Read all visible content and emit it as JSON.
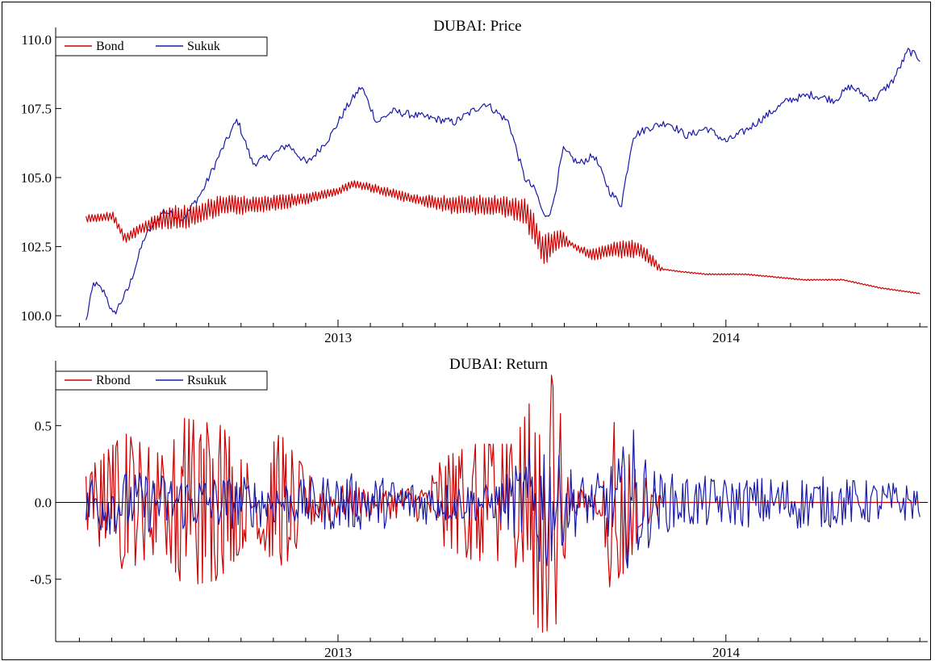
{
  "chart_data": [
    {
      "type": "line",
      "title": "DUBAI: Price",
      "xlabel": "",
      "ylabel": "",
      "x_tick_labels": [
        "2013",
        "2014"
      ],
      "y_ticks": [
        "100.0",
        "102.5",
        "105.0",
        "107.5",
        "110.0"
      ],
      "ylim": [
        99.8,
        110.2
      ],
      "xlim": [
        2012.33,
        2014.52
      ],
      "legend_position": "top-left",
      "grid": false,
      "series": [
        {
          "name": "Bond",
          "color": "#cc0000",
          "anchors": [
            [
              2012.35,
              103.5
            ],
            [
              2012.42,
              103.6
            ],
            [
              2012.45,
              102.8
            ],
            [
              2012.5,
              103.2
            ],
            [
              2012.55,
              103.5
            ],
            [
              2012.62,
              103.6
            ],
            [
              2012.7,
              104.0
            ],
            [
              2012.8,
              104.0
            ],
            [
              2012.9,
              104.2
            ],
            [
              2013.0,
              104.5
            ],
            [
              2013.04,
              104.8
            ],
            [
              2013.12,
              104.5
            ],
            [
              2013.2,
              104.2
            ],
            [
              2013.3,
              104.0
            ],
            [
              2013.4,
              104.0
            ],
            [
              2013.48,
              103.8
            ],
            [
              2013.53,
              102.4
            ],
            [
              2013.57,
              102.8
            ],
            [
              2013.6,
              102.6
            ],
            [
              2013.65,
              102.2
            ],
            [
              2013.72,
              102.4
            ],
            [
              2013.78,
              102.4
            ],
            [
              2013.83,
              101.7
            ],
            [
              2013.88,
              101.6
            ],
            [
              2013.95,
              101.5
            ],
            [
              2014.05,
              101.5
            ],
            [
              2014.2,
              101.3
            ],
            [
              2014.3,
              101.3
            ],
            [
              2014.4,
              101.0
            ],
            [
              2014.5,
              100.8
            ]
          ],
          "oscillation": [
            [
              2012.35,
              0.3
            ],
            [
              2012.5,
              0.4
            ],
            [
              2012.58,
              0.9
            ],
            [
              2012.75,
              0.7
            ],
            [
              2012.9,
              0.5
            ],
            [
              2013.0,
              0.3
            ],
            [
              2013.2,
              0.4
            ],
            [
              2013.3,
              0.7
            ],
            [
              2013.45,
              0.8
            ],
            [
              2013.5,
              1.2
            ],
            [
              2013.56,
              1.1
            ],
            [
              2013.6,
              0.2
            ],
            [
              2013.68,
              0.5
            ],
            [
              2013.75,
              0.7
            ],
            [
              2013.82,
              0.4
            ],
            [
              2013.84,
              0.05
            ],
            [
              2014.5,
              0.05
            ]
          ]
        },
        {
          "name": "Sukuk",
          "color": "#1a1aa8",
          "anchors": [
            [
              2012.35,
              99.8
            ],
            [
              2012.37,
              101.2
            ],
            [
              2012.4,
              100.8
            ],
            [
              2012.42,
              100.0
            ],
            [
              2012.46,
              101.0
            ],
            [
              2012.5,
              102.8
            ],
            [
              2012.55,
              103.8
            ],
            [
              2012.6,
              103.5
            ],
            [
              2012.65,
              104.5
            ],
            [
              2012.7,
              106.0
            ],
            [
              2012.74,
              107.1
            ],
            [
              2012.78,
              105.5
            ],
            [
              2012.83,
              105.8
            ],
            [
              2012.87,
              106.2
            ],
            [
              2012.92,
              105.5
            ],
            [
              2012.98,
              106.5
            ],
            [
              2013.02,
              107.5
            ],
            [
              2013.06,
              108.3
            ],
            [
              2013.1,
              107.0
            ],
            [
              2013.14,
              107.4
            ],
            [
              2013.22,
              107.2
            ],
            [
              2013.3,
              107.0
            ],
            [
              2013.38,
              107.7
            ],
            [
              2013.44,
              107.0
            ],
            [
              2013.48,
              105.0
            ],
            [
              2013.51,
              104.5
            ],
            [
              2013.53,
              103.6
            ],
            [
              2013.55,
              103.8
            ],
            [
              2013.58,
              106.0
            ],
            [
              2013.62,
              105.5
            ],
            [
              2013.66,
              105.8
            ],
            [
              2013.7,
              104.5
            ],
            [
              2013.73,
              104.0
            ],
            [
              2013.76,
              106.5
            ],
            [
              2013.8,
              106.8
            ],
            [
              2013.85,
              107.0
            ],
            [
              2013.9,
              106.5
            ],
            [
              2013.95,
              106.8
            ],
            [
              2014.0,
              106.3
            ],
            [
              2014.05,
              106.7
            ],
            [
              2014.1,
              107.2
            ],
            [
              2014.16,
              107.8
            ],
            [
              2014.22,
              108.0
            ],
            [
              2014.28,
              107.8
            ],
            [
              2014.32,
              108.3
            ],
            [
              2014.38,
              107.8
            ],
            [
              2014.43,
              108.5
            ],
            [
              2014.47,
              109.6
            ],
            [
              2014.5,
              109.3
            ]
          ],
          "noise": 0.28
        }
      ]
    },
    {
      "type": "line",
      "title": "DUBAI: Return",
      "xlabel": "",
      "ylabel": "",
      "x_tick_labels": [
        "2013",
        "2014"
      ],
      "y_ticks": [
        "-0.5",
        "0.0",
        "0.5"
      ],
      "ylim": [
        -0.88,
        0.88
      ],
      "xlim": [
        2012.33,
        2014.52
      ],
      "legend_position": "top-left",
      "grid": false,
      "series": [
        {
          "name": "Rbond",
          "color": "#cc0000",
          "amplitude_envelope": [
            [
              2012.35,
              0.2
            ],
            [
              2012.45,
              0.45
            ],
            [
              2012.55,
              0.3
            ],
            [
              2012.6,
              0.55
            ],
            [
              2012.7,
              0.5
            ],
            [
              2012.78,
              0.2
            ],
            [
              2012.85,
              0.45
            ],
            [
              2012.92,
              0.2
            ],
            [
              2013.0,
              0.12
            ],
            [
              2013.1,
              0.1
            ],
            [
              2013.2,
              0.12
            ],
            [
              2013.28,
              0.3
            ],
            [
              2013.35,
              0.38
            ],
            [
              2013.45,
              0.38
            ],
            [
              2013.48,
              0.55
            ],
            [
              2013.52,
              0.85
            ],
            [
              2013.56,
              0.82
            ],
            [
              2013.6,
              0.08
            ],
            [
              2013.68,
              0.1
            ],
            [
              2013.7,
              0.55
            ],
            [
              2013.74,
              0.45
            ],
            [
              2013.78,
              0.2
            ],
            [
              2013.82,
              0.1
            ],
            [
              2013.84,
              0.0
            ],
            [
              2014.5,
              0.0
            ]
          ]
        },
        {
          "name": "Rsukuk",
          "color": "#1a1aa8",
          "amplitude_envelope": [
            [
              2012.35,
              0.22
            ],
            [
              2012.5,
              0.2
            ],
            [
              2012.7,
              0.18
            ],
            [
              2012.9,
              0.15
            ],
            [
              2013.0,
              0.2
            ],
            [
              2013.2,
              0.15
            ],
            [
              2013.4,
              0.12
            ],
            [
              2013.48,
              0.3
            ],
            [
              2013.53,
              0.55
            ],
            [
              2013.57,
              0.3
            ],
            [
              2013.65,
              0.15
            ],
            [
              2013.72,
              0.3
            ],
            [
              2013.76,
              0.5
            ],
            [
              2013.82,
              0.2
            ],
            [
              2014.0,
              0.16
            ],
            [
              2014.2,
              0.18
            ],
            [
              2014.5,
              0.12
            ]
          ]
        }
      ]
    }
  ]
}
